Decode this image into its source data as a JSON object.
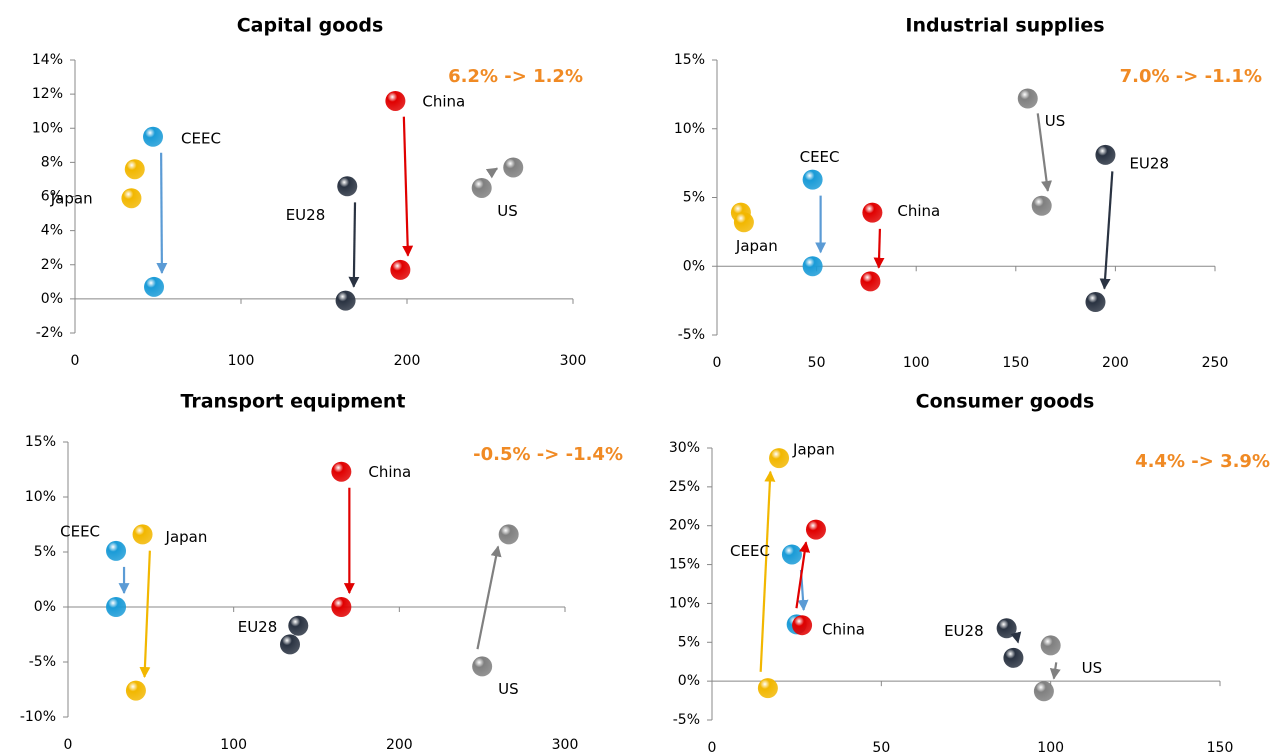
{
  "chart_data": [
    {
      "type": "scatter",
      "title": "Capital goods",
      "annotation": "6.2% -> 1.2%",
      "xlim": [
        0,
        300
      ],
      "xticks": [
        0,
        100,
        200,
        300
      ],
      "ylim": [
        -2,
        14
      ],
      "yticks": [
        {
          "value": -2,
          "label": "-2%"
        },
        {
          "value": 0,
          "label": "0%"
        },
        {
          "value": 2,
          "label": "2%"
        },
        {
          "value": 4,
          "label": "4%"
        },
        {
          "value": 6,
          "label": "6%"
        },
        {
          "value": 8,
          "label": "8%"
        },
        {
          "value": 10,
          "label": "10%"
        },
        {
          "value": 12,
          "label": "12%"
        },
        {
          "value": 14,
          "label": "14%"
        }
      ],
      "series": [
        {
          "name": "Japan",
          "color": "#f2b700",
          "x": [
            34,
            36
          ],
          "values": [
            5.9,
            7.6
          ]
        },
        {
          "name": "CEEC",
          "color": "#1a9bd7",
          "x": [
            47,
            47.6
          ],
          "values": [
            9.5,
            0.7
          ]
        },
        {
          "name": "EU28",
          "color": "#2a3342",
          "x": [
            164,
            163
          ],
          "values": [
            6.6,
            -0.1
          ]
        },
        {
          "name": "China",
          "color": "#e00000",
          "x": [
            193,
            196
          ],
          "values": [
            11.6,
            1.7
          ]
        },
        {
          "name": "US",
          "color": "#808080",
          "x": [
            245,
            264
          ],
          "values": [
            6.5,
            7.7
          ]
        }
      ]
    },
    {
      "type": "scatter",
      "title": "Industrial supplies",
      "annotation": "7.0% -> -1.1%",
      "xlim": [
        0,
        250
      ],
      "xticks": [
        0,
        50,
        100,
        150,
        200,
        250
      ],
      "ylim": [
        -5,
        15
      ],
      "yticks": [
        {
          "value": -5,
          "label": "-5%"
        },
        {
          "value": 0,
          "label": "0%"
        },
        {
          "value": 5,
          "label": "5%"
        },
        {
          "value": 10,
          "label": "10%"
        },
        {
          "value": 15,
          "label": "15%"
        }
      ],
      "series": [
        {
          "name": "Japan",
          "color": "#f2b700",
          "x": [
            12,
            13.5
          ],
          "values": [
            3.9,
            3.2
          ]
        },
        {
          "name": "CEEC",
          "color": "#1a9bd7",
          "x": [
            48,
            48
          ],
          "values": [
            6.3,
            0
          ]
        },
        {
          "name": "EU28",
          "color": "#2a3342",
          "x": [
            195,
            190
          ],
          "values": [
            8.1,
            -2.6
          ]
        },
        {
          "name": "China",
          "color": "#e00000",
          "x": [
            78,
            77
          ],
          "values": [
            3.9,
            -1.1
          ]
        },
        {
          "name": "US",
          "color": "#808080",
          "x": [
            156,
            163
          ],
          "values": [
            12.2,
            4.4
          ]
        }
      ]
    },
    {
      "type": "scatter",
      "title": "Transport equipment",
      "annotation": "-0.5% -> -1.4%",
      "xlim": [
        0,
        300
      ],
      "xticks": [
        0,
        100,
        200,
        300
      ],
      "ylim": [
        -10,
        15
      ],
      "yticks": [
        {
          "value": -10,
          "label": "-10%"
        },
        {
          "value": -5,
          "label": "-5%"
        },
        {
          "value": 0,
          "label": "0%"
        },
        {
          "value": 5,
          "label": "5%"
        },
        {
          "value": 10,
          "label": "10%"
        },
        {
          "value": 15,
          "label": "15%"
        }
      ],
      "series": [
        {
          "name": "Japan",
          "color": "#f2b700",
          "x": [
            45,
            41
          ],
          "values": [
            6.6,
            -7.6
          ]
        },
        {
          "name": "CEEC",
          "color": "#1a9bd7",
          "x": [
            29,
            29
          ],
          "values": [
            5.1,
            0
          ]
        },
        {
          "name": "EU28",
          "color": "#2a3342",
          "x": [
            139,
            134
          ],
          "values": [
            -1.7,
            -3.4
          ]
        },
        {
          "name": "China",
          "color": "#e00000",
          "x": [
            165,
            165
          ],
          "values": [
            12.3,
            0
          ]
        },
        {
          "name": "US",
          "color": "#808080",
          "x": [
            250,
            266
          ],
          "values": [
            -5.4,
            6.6
          ]
        }
      ]
    },
    {
      "type": "scatter",
      "title": "Consumer goods",
      "annotation": "4.4% -> 3.9%",
      "xlim": [
        0,
        150
      ],
      "xticks": [
        0,
        50,
        100,
        150
      ],
      "ylim": [
        -5,
        30
      ],
      "yticks": [
        {
          "value": -5,
          "label": "-5%"
        },
        {
          "value": 0,
          "label": "0%"
        },
        {
          "value": 5,
          "label": "5%"
        },
        {
          "value": 10,
          "label": "10%"
        },
        {
          "value": 15,
          "label": "15%"
        },
        {
          "value": 20,
          "label": "20%"
        },
        {
          "value": 25,
          "label": "25%"
        },
        {
          "value": 30,
          "label": "30%"
        }
      ],
      "series": [
        {
          "name": "Japan",
          "color": "#f2b700",
          "x": [
            16.5,
            19.8
          ],
          "values": [
            -0.9,
            28.7
          ]
        },
        {
          "name": "CEEC",
          "color": "#1a9bd7",
          "x": [
            23.6,
            25
          ],
          "values": [
            16.3,
            7.3
          ]
        },
        {
          "name": "EU28",
          "color": "#2a3342",
          "x": [
            87,
            89
          ],
          "values": [
            6.8,
            3.0
          ]
        },
        {
          "name": "China",
          "color": "#e00000",
          "x": [
            26.6,
            30.7
          ],
          "values": [
            7.2,
            19.5
          ]
        },
        {
          "name": "US",
          "color": "#808080",
          "x": [
            100,
            98
          ],
          "values": [
            4.6,
            -1.3
          ]
        }
      ]
    }
  ]
}
